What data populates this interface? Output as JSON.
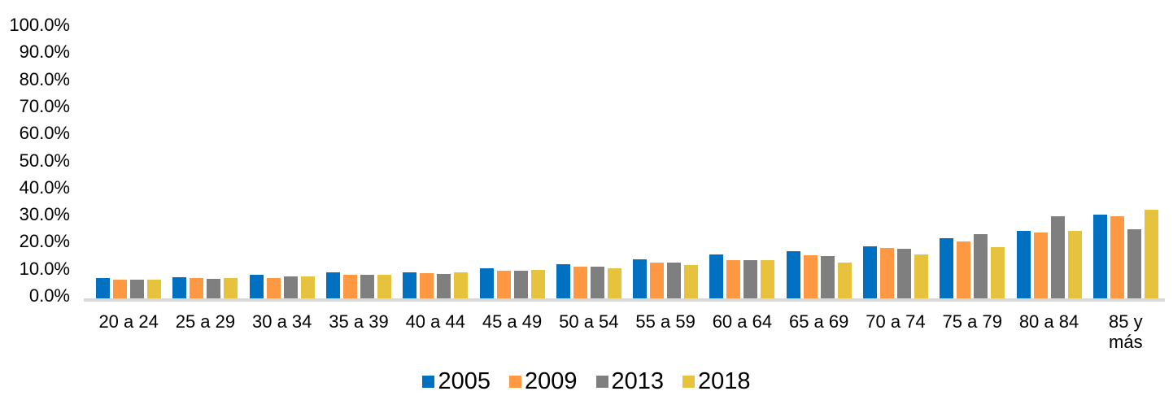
{
  "chart_data": {
    "type": "bar",
    "title": "",
    "xlabel": "",
    "ylabel": "",
    "ylim": [
      0,
      100
    ],
    "grid": false,
    "legend_position": "bottom-center",
    "y_tick_labels": [
      "0.0%",
      "10.0%",
      "20.0%",
      "30.0%",
      "40.0%",
      "50.0%",
      "60.0%",
      "70.0%",
      "80.0%",
      "90.0%",
      "100.0%"
    ],
    "y_tick_values": [
      0,
      10,
      20,
      30,
      40,
      50,
      60,
      70,
      80,
      90,
      100
    ],
    "categories": [
      "20 a 24",
      "25 a 29",
      "30 a 34",
      "35 a 39",
      "40 a 44",
      "45 a 49",
      "50 a 54",
      "55 a 59",
      "60 a 64",
      "65 a 69",
      "70 a 74",
      "75 a 79",
      "80 a 84",
      "85 y\nmás"
    ],
    "series": [
      {
        "name": "2005",
        "color": "#0070C0",
        "values": [
          7.7,
          8.0,
          8.9,
          9.9,
          10.0,
          11.5,
          13.0,
          14.8,
          16.4,
          17.8,
          19.6,
          22.6,
          25.1,
          31.2
        ]
      },
      {
        "name": "2009",
        "color": "#FF9843",
        "values": [
          7.1,
          7.7,
          7.9,
          9.1,
          9.5,
          10.6,
          11.9,
          13.4,
          14.4,
          16.2,
          19.0,
          21.4,
          24.6,
          30.7
        ]
      },
      {
        "name": "2013",
        "color": "#7F7F7F",
        "values": [
          7.3,
          7.5,
          8.5,
          9.0,
          9.4,
          10.6,
          11.9,
          13.4,
          14.4,
          16.0,
          18.6,
          24.0,
          30.7,
          25.9
        ]
      },
      {
        "name": "2018",
        "color": "#E7C23D",
        "values": [
          7.1,
          7.7,
          8.3,
          9.0,
          10.0,
          10.7,
          11.5,
          12.7,
          14.4,
          13.5,
          16.6,
          19.2,
          25.2,
          32.9
        ]
      }
    ]
  },
  "style": {
    "axis_line_color": "#d9d9d9",
    "text_color": "#000000",
    "background": "#ffffff"
  }
}
